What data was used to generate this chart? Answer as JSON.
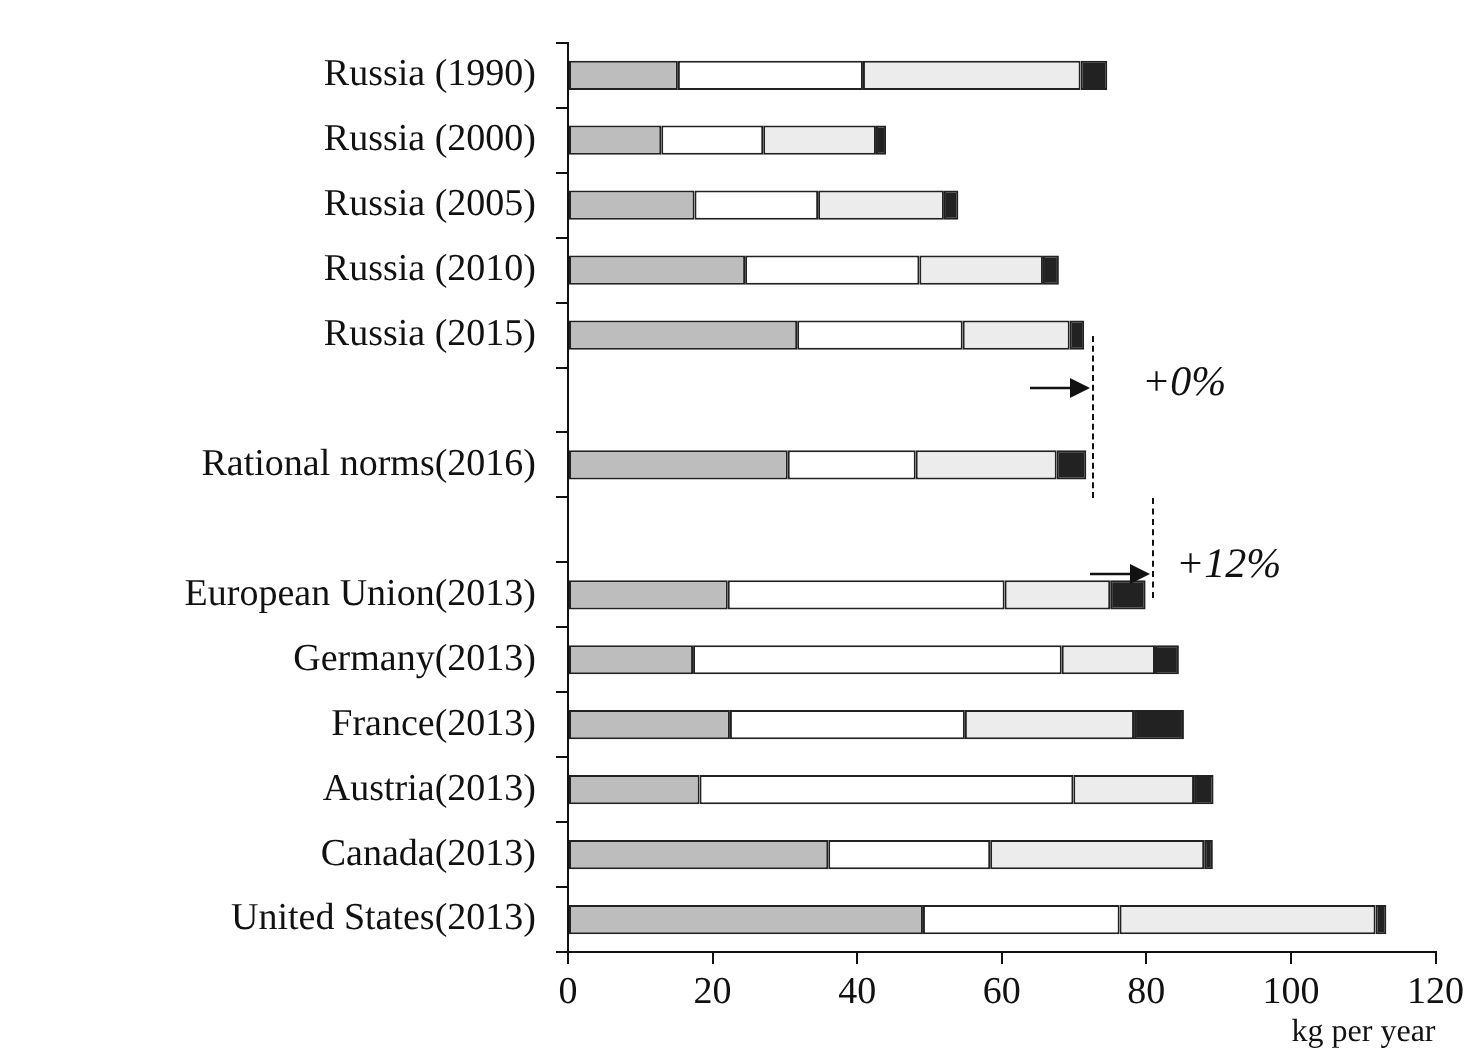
{
  "chart_data": {
    "type": "bar",
    "orientation": "horizontal",
    "stacked": true,
    "categories": [
      "Russia (1990)",
      "Russia (2000)",
      "Russia (2005)",
      "Russia (2010)",
      "Russia (2015)",
      null,
      "Rational norms(2016)",
      null,
      "European Union(2013)",
      "Germany(2013)",
      "France(2013)",
      "Austria(2013)",
      "Canada(2013)",
      "United States(2013)"
    ],
    "series": [
      {
        "color": "#bdbdbd",
        "values": [
          15.2,
          12.9,
          17.5,
          24.5,
          31.7,
          null,
          30.4,
          null,
          22.1,
          17.3,
          22.4,
          18.2,
          36.0,
          49.1
        ]
      },
      {
        "color": "#ffffff",
        "values": [
          25.6,
          14.1,
          17.1,
          24.1,
          22.9,
          null,
          17.7,
          null,
          38.3,
          51.0,
          32.5,
          51.7,
          22.4,
          27.2
        ]
      },
      {
        "color": "#ececec",
        "values": [
          30.1,
          15.6,
          17.4,
          17.1,
          14.8,
          null,
          19.5,
          null,
          14.6,
          12.9,
          23.4,
          16.7,
          29.6,
          35.4
        ]
      },
      {
        "color": "#222222",
        "values": [
          3.7,
          1.4,
          2.0,
          2.2,
          2.0,
          null,
          4.1,
          null,
          4.9,
          3.3,
          6.9,
          2.7,
          1.2,
          1.5
        ]
      }
    ],
    "xlim": [
      0,
      120
    ],
    "xticks": [
      0,
      20,
      40,
      60,
      80,
      100,
      120
    ],
    "xlabel": "kg per year",
    "annotations": [
      "+0%",
      "+12%"
    ],
    "grid": false,
    "legend": false
  }
}
